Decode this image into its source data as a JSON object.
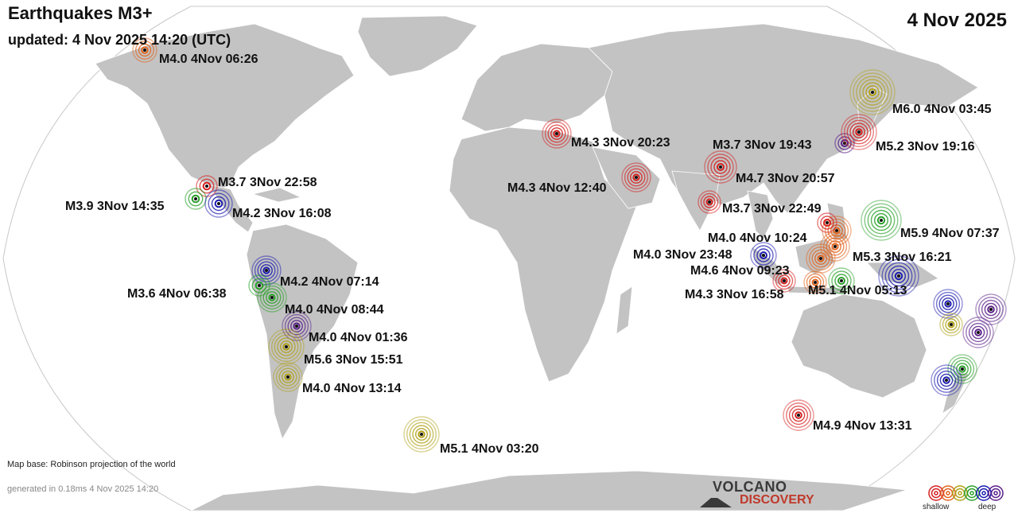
{
  "header": {
    "title": "Earthquakes M3+",
    "updated": "updated:  4 Nov 2025 14:20 (UTC)",
    "date": "4 Nov 2025"
  },
  "footer": {
    "map_base": "Map base: Robinson projection of the world",
    "generated": "generated in 0.18ms  4 Nov 2025 14:20"
  },
  "logo": {
    "line1": "VOLCANO",
    "line2": "DISCOVERY"
  },
  "legend": {
    "shallow_label": "shallow",
    "deep_label": "deep",
    "colors": [
      "#d62020",
      "#e2641e",
      "#b0a11a",
      "#2aa02a",
      "#1b1bb0",
      "#5a1f8a"
    ]
  },
  "colors": {
    "ocean": "#ffffff",
    "land": "#c3c3c3",
    "coast": "#ffffff"
  },
  "quakes": [
    {
      "label": "M4.0  4Nov 06:26",
      "color": "#e2641e"
    },
    {
      "label": "M6.0  4Nov 03:45",
      "color": "#b0a11a"
    },
    {
      "label": "M4.3  3Nov 20:23",
      "color": "#d62020"
    },
    {
      "label": "M3.7  3Nov 19:43",
      "color": "#5a1f8a"
    },
    {
      "label": "M5.2  3Nov 19:16",
      "color": "#d62020"
    },
    {
      "label": "M4.3  4Nov 12:40",
      "color": "#d62020"
    },
    {
      "label": "M4.7  3Nov 20:57",
      "color": "#d62020"
    },
    {
      "label": "M3.7  3Nov 22:49",
      "color": "#d62020"
    },
    {
      "label": "M5.9  4Nov 07:37",
      "color": "#2aa02a"
    },
    {
      "label": "M4.0  4Nov 10:24",
      "color": "#e2641e"
    },
    {
      "label": "M4.0  3Nov 23:48",
      "color": "#1b1bb0"
    },
    {
      "label": "M5.3  3Nov 16:21",
      "color": "#1b1bb0"
    },
    {
      "label": "M4.6  4Nov 09:23",
      "color": "#e2641e"
    },
    {
      "label": "M4.3  3Nov 16:58",
      "color": "#d62020"
    },
    {
      "label": "M5.1  4Nov 05:13",
      "color": "#2aa02a"
    },
    {
      "label": "M3.7  3Nov 22:58",
      "color": "#d62020"
    },
    {
      "label": "M3.9  3Nov 14:35",
      "color": "#2aa02a"
    },
    {
      "label": "M4.2  3Nov 16:08",
      "color": "#1b1bb0"
    },
    {
      "label": "M4.2  4Nov 07:14",
      "color": "#1b1bb0"
    },
    {
      "label": "M3.6  4Nov 06:38",
      "color": "#2aa02a"
    },
    {
      "label": "M4.0  4Nov 08:44",
      "color": "#2aa02a"
    },
    {
      "label": "M4.0  4Nov 01:36",
      "color": "#5a1f8a"
    },
    {
      "label": "M5.6  3Nov 15:51",
      "color": "#b0a11a"
    },
    {
      "label": "M4.0  4Nov 13:14",
      "color": "#b0a11a"
    },
    {
      "label": "M5.1  4Nov 03:20",
      "color": "#b0a11a"
    },
    {
      "label": "M4.9  4Nov 13:31",
      "color": "#d62020"
    },
    {
      "label": "",
      "color": "#1b1bb0"
    },
    {
      "label": "",
      "color": "#b0a11a"
    },
    {
      "label": "",
      "color": "#5a1f8a"
    },
    {
      "label": "",
      "color": "#5a1f8a"
    },
    {
      "label": "",
      "color": "#2aa02a"
    },
    {
      "label": "",
      "color": "#1b1bb0"
    },
    {
      "label": "",
      "color": "#e2641e"
    },
    {
      "label": "",
      "color": "#e2641e"
    },
    {
      "label": "",
      "color": "#d62020"
    }
  ]
}
